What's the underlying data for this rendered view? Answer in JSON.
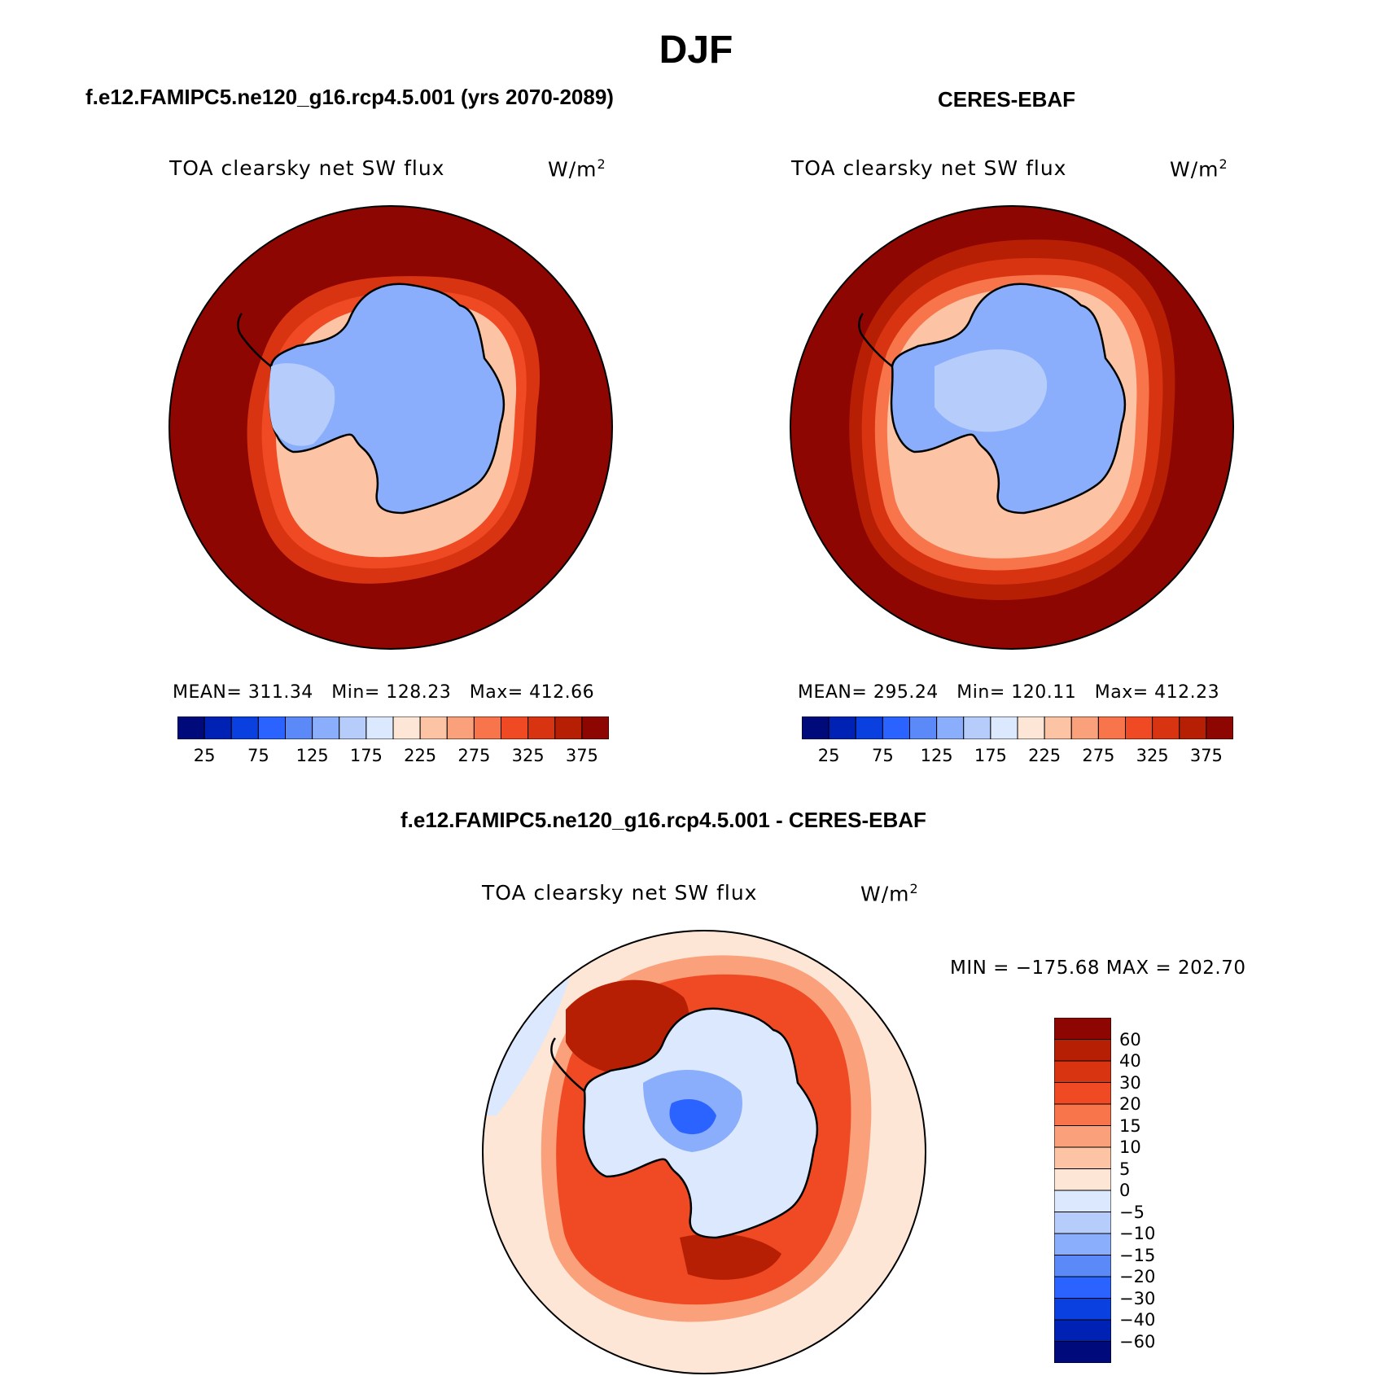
{
  "figure": {
    "title": "DJF"
  },
  "panels": [
    {
      "title": "f.e12.FAMIPC5.ne120_g16.rcp4.5.001 (yrs 2070-2089)",
      "variable": "TOA clearsky net SW flux",
      "units": "W/m",
      "units_exp": "2",
      "stats": {
        "mean_label": "MEAN=",
        "mean": "311.34",
        "min_label": "Min=",
        "min": "128.23",
        "max_label": "Max=",
        "max": "412.66"
      }
    },
    {
      "title": "CERES-EBAF",
      "variable": "TOA clearsky net SW flux",
      "units": "W/m",
      "units_exp": "2",
      "stats": {
        "mean_label": "MEAN=",
        "mean": "295.24",
        "min_label": "Min=",
        "min": "120.11",
        "max_label": "Max=",
        "max": "412.23"
      }
    },
    {
      "title": "f.e12.FAMIPC5.ne120_g16.rcp4.5.001 - CERES-EBAF",
      "variable": "TOA clearsky net SW flux",
      "units": "W/m",
      "units_exp": "2",
      "minmax_text": "MIN = −175.68 MAX = 202.70"
    }
  ],
  "colorbar_abs": {
    "tick_labels": [
      "25",
      "75",
      "125",
      "175",
      "225",
      "275",
      "325",
      "375"
    ],
    "colors": [
      "#000a7a",
      "#0022b4",
      "#0a3fe0",
      "#2a63ff",
      "#5b8af8",
      "#8aaefb",
      "#b6cdfc",
      "#dbe8fd",
      "#fde6d6",
      "#fcc3a5",
      "#faa07a",
      "#f8744a",
      "#ef4a23",
      "#d93412",
      "#b71f05",
      "#8e0601"
    ]
  },
  "colorbar_diff": {
    "tick_labels": [
      "60",
      "40",
      "30",
      "20",
      "15",
      "10",
      "5",
      "0",
      "−5",
      "−10",
      "−15",
      "−20",
      "−30",
      "−40",
      "−60"
    ],
    "colors": [
      "#8e0601",
      "#b71f05",
      "#d93412",
      "#ef4a23",
      "#f8744a",
      "#faa07a",
      "#fcc3a5",
      "#fde6d6",
      "#dbe8fd",
      "#b6cdfc",
      "#8aaefb",
      "#5b8af8",
      "#2a63ff",
      "#0a3fe0",
      "#0022b4",
      "#000a7a"
    ]
  }
}
